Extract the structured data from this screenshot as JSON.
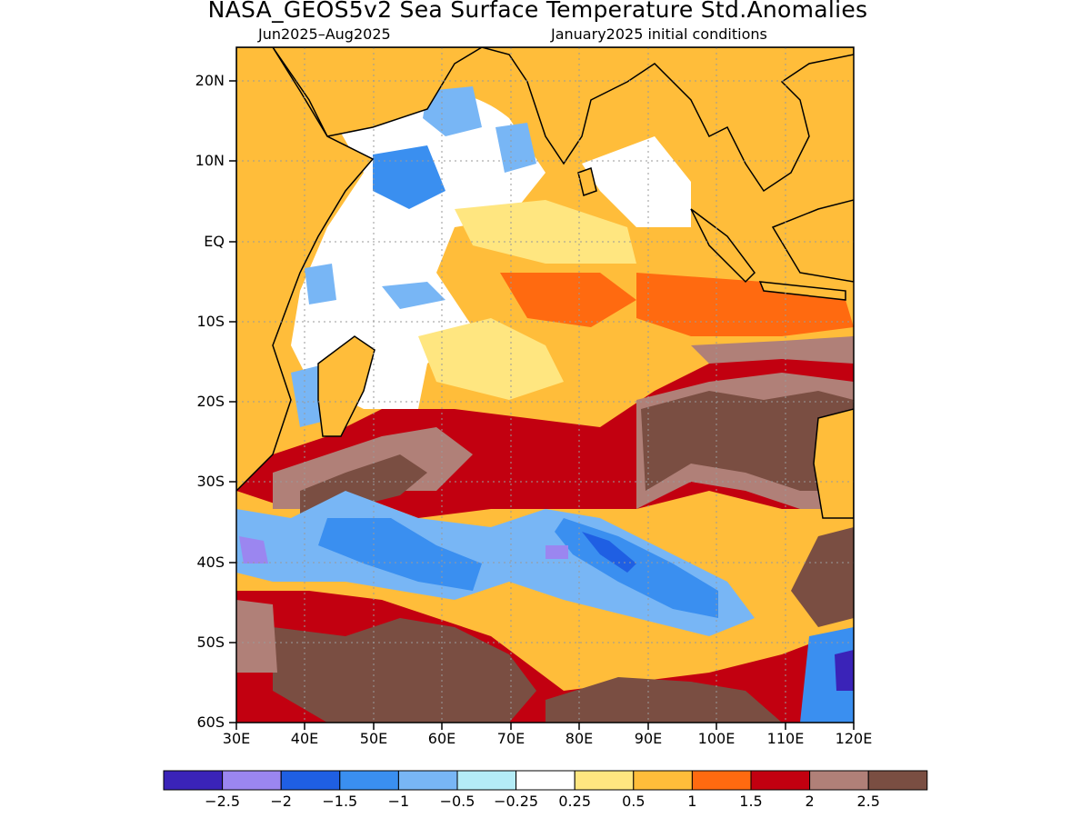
{
  "header": {
    "title": "NASA_GEOS5v2 Sea Surface Temperature Std.Anomalies",
    "period": "Jun2025–Aug2025",
    "init": "January2025 initial conditions"
  },
  "map": {
    "lat_labels": [
      "20N",
      "10N",
      "EQ",
      "10S",
      "20S",
      "30S",
      "40S",
      "50S",
      "60S"
    ],
    "lon_labels": [
      "30E",
      "40E",
      "50E",
      "60E",
      "70E",
      "80E",
      "90E",
      "100E",
      "110E",
      "120E"
    ],
    "lon_range": [
      30,
      120
    ],
    "lat_range": [
      -60,
      24
    ],
    "grid": "dotted"
  },
  "colorbar": {
    "colors": [
      "#3a23b8",
      "#9b86f0",
      "#1f5fe3",
      "#3a8ff0",
      "#78b6f5",
      "#b4ecf7",
      "#ffffff",
      "#ffe680",
      "#ffbd3a",
      "#ff6a10",
      "#c20010",
      "#b08078",
      "#7a4e42"
    ],
    "labels": [
      "−2.5",
      "−2",
      "−1.5",
      "−1",
      "−0.5",
      "−0.25",
      "0.25",
      "0.5",
      "1",
      "1.5",
      "2",
      "2.5"
    ]
  }
}
